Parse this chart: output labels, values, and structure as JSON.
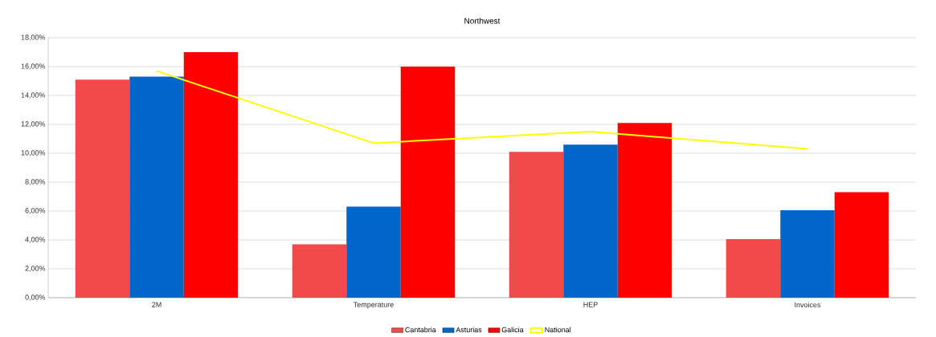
{
  "chart_data": {
    "type": "bar",
    "title": "Northwest",
    "categories": [
      "2M",
      "Temperature",
      "HEP",
      "Invoices"
    ],
    "series": [
      {
        "name": "Cantabria",
        "color": "#f24a4a",
        "values": [
          15.1,
          3.7,
          10.1,
          4.05
        ]
      },
      {
        "name": "Asturias",
        "color": "#0066cc",
        "values": [
          15.3,
          6.3,
          10.6,
          6.05
        ]
      },
      {
        "name": "Galicia",
        "color": "#ff0000",
        "values": [
          17.0,
          16.0,
          12.1,
          7.3
        ]
      },
      {
        "name": "National",
        "type": "line",
        "color": "#ffff00",
        "values": [
          15.7,
          10.7,
          11.5,
          10.3
        ]
      }
    ],
    "ylim": [
      0,
      18
    ],
    "yticks": [
      {
        "value": 0,
        "label": "0,00%"
      },
      {
        "value": 2,
        "label": "2,00%"
      },
      {
        "value": 4,
        "label": "4,00%"
      },
      {
        "value": 6,
        "label": "6,00%"
      },
      {
        "value": 8,
        "label": "8,00%"
      },
      {
        "value": 10,
        "label": "10,00%"
      },
      {
        "value": 12,
        "label": "12,00%"
      },
      {
        "value": 14,
        "label": "14,00%"
      },
      {
        "value": 16,
        "label": "16,00%"
      },
      {
        "value": 18,
        "label": "18,00%"
      }
    ],
    "grid": "y",
    "legend": "bottom"
  }
}
